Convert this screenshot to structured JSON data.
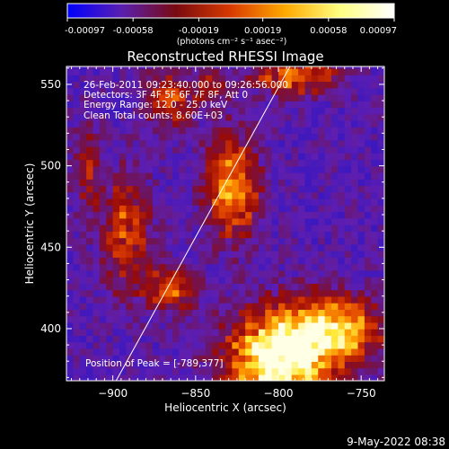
{
  "colorbar": {
    "tick_labels": [
      "-0.00097",
      "-0.00058",
      "-0.00019",
      "0.00019",
      "0.00058",
      "0.00097"
    ],
    "tick_values": [
      -0.00097,
      -0.00058,
      -0.00019,
      0.00019,
      0.00058,
      0.00097
    ],
    "range": [
      -0.00097,
      0.00097
    ],
    "unit_text": "(photons cm⁻² s⁻¹ asec⁻²)",
    "colors": [
      "#0000ff",
      "#5a1fb0",
      "#7a0a10",
      "#d83a00",
      "#ffaa00",
      "#ffff80",
      "#ffffff"
    ]
  },
  "chart_data": {
    "type": "heatmap",
    "title": "Reconstructed RHESSI Image",
    "xlabel": "Heliocentric X (arcsec)",
    "ylabel": "Heliocentric Y (arcsec)",
    "xlim": [
      -928,
      -736
    ],
    "ylim": [
      368,
      561
    ],
    "x_ticks": [
      -900,
      -850,
      -800,
      -750
    ],
    "y_ticks": [
      400,
      450,
      500,
      550
    ],
    "x_tick_labels": [
      "−900",
      "−850",
      "−800",
      "−750"
    ],
    "y_tick_labels": [
      "400",
      "450",
      "500",
      "550"
    ],
    "annotations": [
      "26-Feb-2011 09:23:40.000 to 09:26:56.000",
      "Detectors: 3F 4F 5F 6F 7F 8F, Att 0",
      "Energy Range: 12.0 - 25.0 keV",
      "Clean      Total counts: 8.60E+03"
    ],
    "peak_text": "Position of Peak = [-789,377]",
    "peak_position": [
      -789,
      377
    ],
    "limb_line": [
      [
        -898,
        368
      ],
      [
        -793,
        561
      ]
    ],
    "sources": [
      {
        "x": -800,
        "y": 380,
        "sx": 22,
        "sy": 22,
        "amp": 1.0
      },
      {
        "x": -765,
        "y": 400,
        "sx": 20,
        "sy": 14,
        "amp": 0.75
      },
      {
        "x": -828,
        "y": 487,
        "sx": 11,
        "sy": 22,
        "amp": 0.7
      },
      {
        "x": -865,
        "y": 425,
        "sx": 10,
        "sy": 10,
        "amp": 0.55
      },
      {
        "x": -892,
        "y": 460,
        "sx": 10,
        "sy": 26,
        "amp": 0.5
      },
      {
        "x": -866,
        "y": 540,
        "sx": 10,
        "sy": 14,
        "amp": 0.45
      },
      {
        "x": -790,
        "y": 555,
        "sx": 18,
        "sy": 8,
        "amp": 0.55
      },
      {
        "x": -840,
        "y": 548,
        "sx": 8,
        "sy": 8,
        "amp": 0.35
      },
      {
        "x": -916,
        "y": 500,
        "sx": 6,
        "sy": 20,
        "amp": 0.35
      }
    ],
    "background_level": -0.25
  },
  "footer": {
    "date": "9-May-2022 08:38"
  }
}
